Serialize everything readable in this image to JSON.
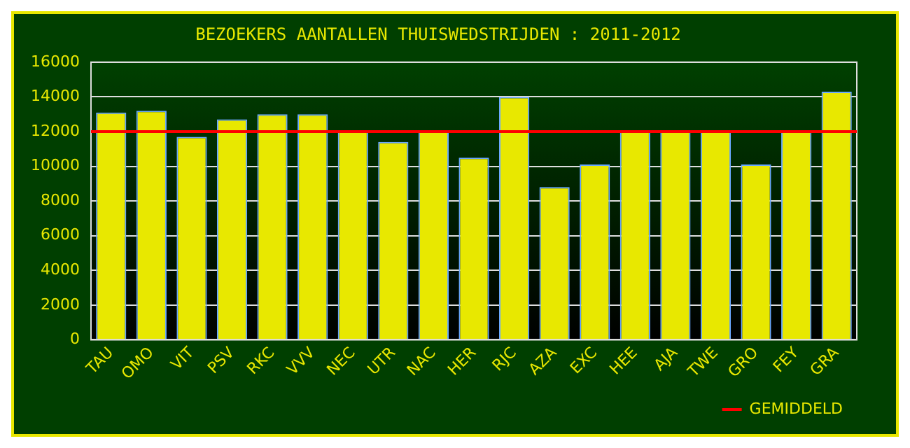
{
  "chart_data": {
    "type": "bar",
    "title": "BEZOEKERS AANTALLEN THUISWEDSTRIJDEN : 2011-2012",
    "categories": [
      "TAU",
      "OMO",
      "VIT",
      "PSV",
      "RKC",
      "VVV",
      "NEC",
      "UTR",
      "NAC",
      "HER",
      "RJC",
      "AZA",
      "EXC",
      "HEE",
      "AJA",
      "TWE",
      "GRO",
      "FEY",
      "GRA"
    ],
    "values": [
      13100,
      13200,
      11700,
      12700,
      13000,
      13000,
      12000,
      11400,
      12000,
      10500,
      14000,
      8800,
      10100,
      12000,
      12000,
      12000,
      10100,
      12000,
      14300
    ],
    "color": "#e8e800",
    "ylim": [
      0,
      16000
    ],
    "yticks": [
      0,
      2000,
      4000,
      6000,
      8000,
      10000,
      12000,
      14000,
      16000
    ],
    "grid": "y",
    "ref_lines": [
      {
        "axis": "y",
        "value": 12000,
        "label": "GEMIDDELD",
        "color": "#ff0000"
      }
    ],
    "legend": "bottom right"
  }
}
